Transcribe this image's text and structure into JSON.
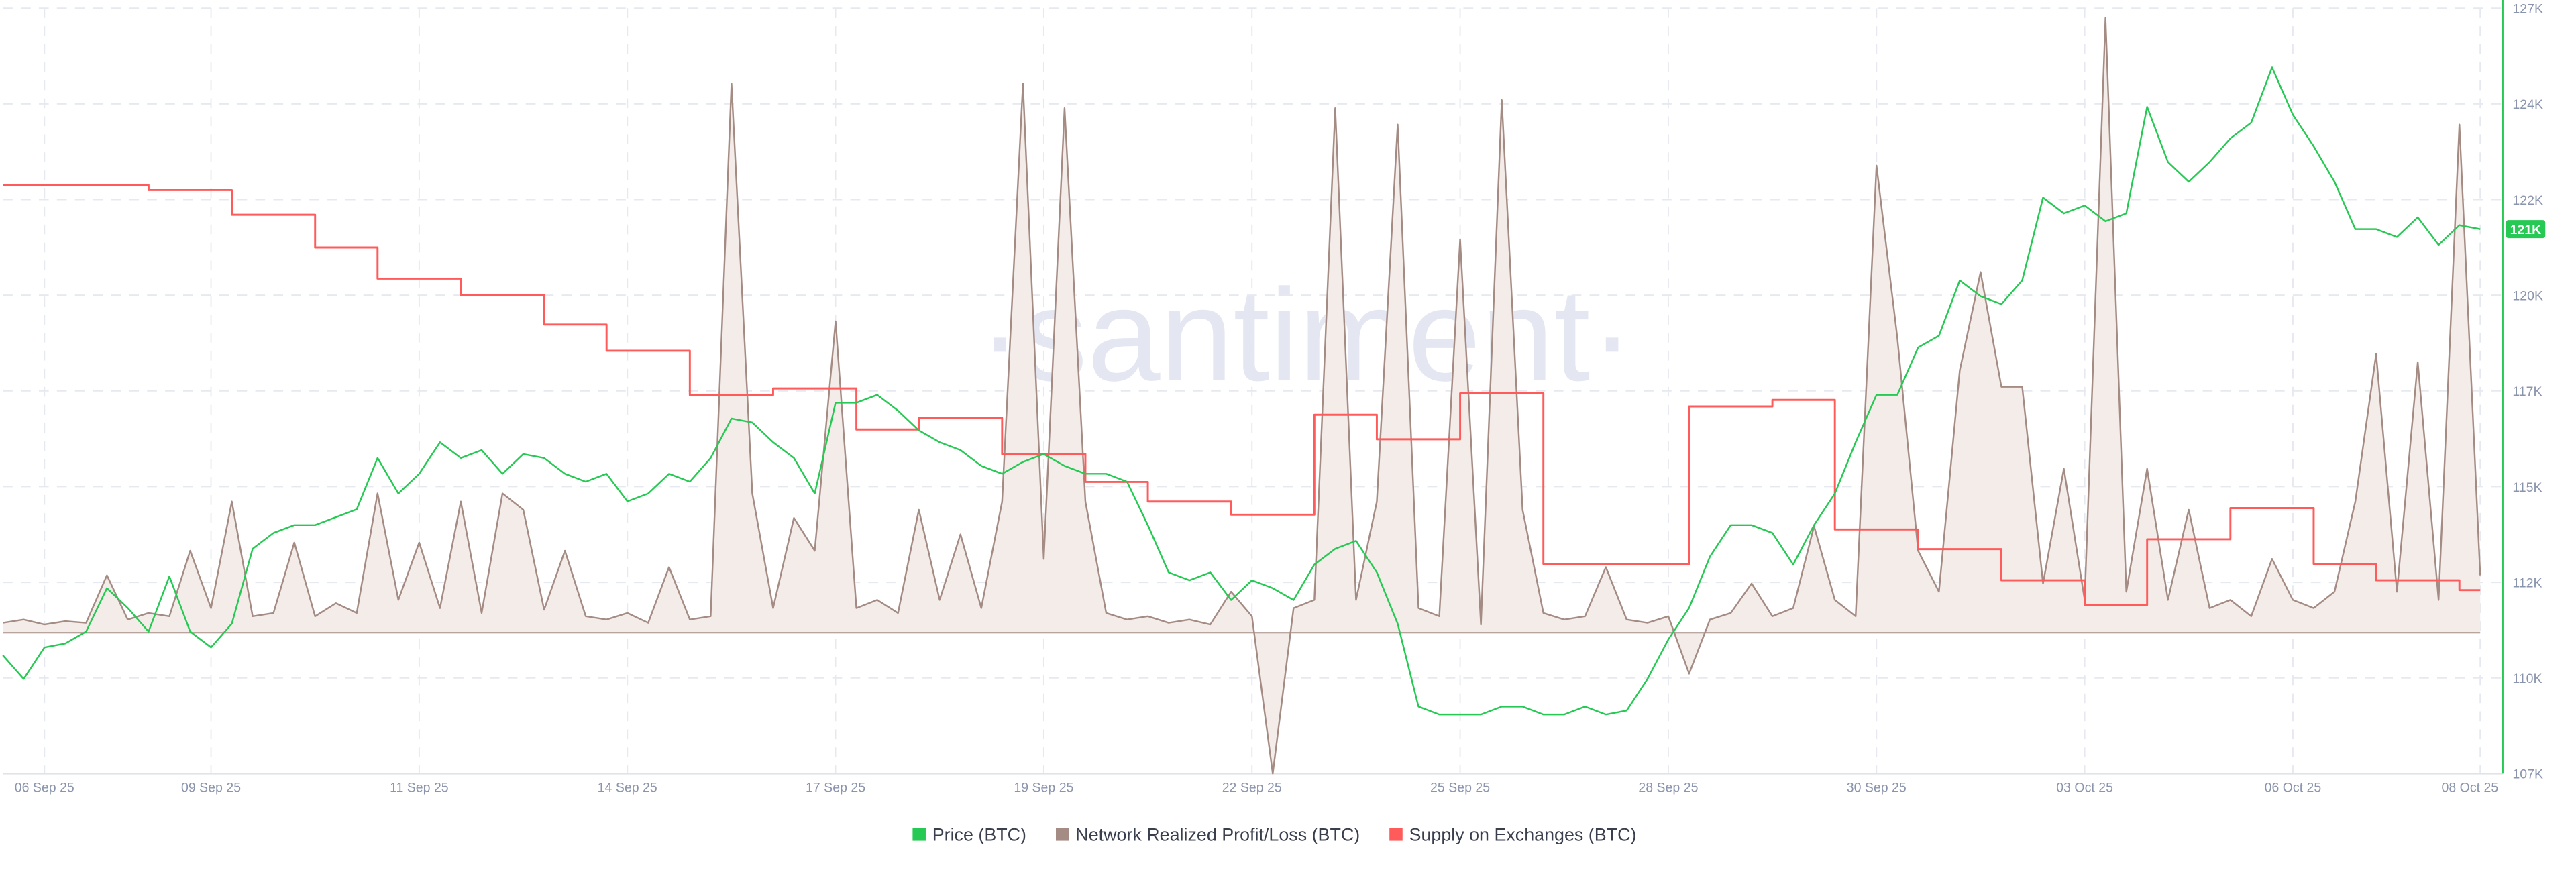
{
  "chart_data": {
    "type": "line",
    "watermark": "·santiment·",
    "categories": [
      null,
      null,
      "06 Sep 25",
      null,
      null,
      null,
      null,
      null,
      null,
      null,
      "09 Sep 25",
      null,
      null,
      null,
      null,
      null,
      null,
      null,
      null,
      null,
      "11 Sep 25",
      null,
      null,
      null,
      null,
      null,
      null,
      null,
      null,
      null,
      "14 Sep 25",
      null,
      null,
      null,
      null,
      null,
      null,
      null,
      null,
      null,
      "17 Sep 25",
      null,
      null,
      null,
      null,
      null,
      null,
      null,
      null,
      null,
      "19 Sep 25",
      null,
      null,
      null,
      null,
      null,
      null,
      null,
      null,
      null,
      "22 Sep 25",
      null,
      null,
      null,
      null,
      null,
      null,
      null,
      null,
      null,
      "25 Sep 25",
      null,
      null,
      null,
      null,
      null,
      null,
      null,
      null,
      null,
      "28 Sep 25",
      null,
      null,
      null,
      null,
      null,
      null,
      null,
      null,
      null,
      "30 Sep 25",
      null,
      null,
      null,
      null,
      null,
      null,
      null,
      null,
      null,
      "03 Oct 25",
      null,
      null,
      null,
      null,
      null,
      null,
      null,
      null,
      null,
      "06 Oct 25",
      null,
      null,
      null,
      null,
      null,
      null,
      null,
      null,
      "08 Oct 25"
    ],
    "series": [
      {
        "name": "Price (BTC)",
        "color": "#26c953",
        "axis": "y2",
        "last_label": "121K",
        "values": [
          110400,
          109800,
          110600,
          110700,
          111000,
          112100,
          111600,
          111000,
          112400,
          111000,
          110600,
          111200,
          113100,
          113500,
          113700,
          113700,
          113900,
          114100,
          115400,
          114500,
          115000,
          115800,
          115400,
          115600,
          115000,
          115500,
          115400,
          115000,
          114800,
          115000,
          114300,
          114500,
          115000,
          114800,
          115400,
          116400,
          116300,
          115800,
          115400,
          114500,
          116800,
          116800,
          117000,
          116600,
          116100,
          115800,
          115600,
          115200,
          115000,
          115300,
          115500,
          115200,
          115000,
          115000,
          114800,
          113700,
          112500,
          112300,
          112500,
          111800,
          112300,
          112100,
          111800,
          112700,
          113100,
          113300,
          112500,
          111200,
          109100,
          108900,
          108900,
          108900,
          109100,
          109100,
          108900,
          108900,
          109100,
          108900,
          109000,
          109800,
          110800,
          111600,
          112900,
          113700,
          113700,
          113500,
          112700,
          113700,
          114500,
          115800,
          117000,
          117000,
          118200,
          118500,
          119900,
          119500,
          119300,
          119900,
          122000,
          121600,
          121800,
          121400,
          121600,
          124300,
          122900,
          122400,
          122900,
          123500,
          123900,
          125300,
          124100,
          123300,
          122400,
          121200,
          121200,
          121000,
          121500,
          120800,
          121300,
          121200
        ]
      },
      {
        "name": "Network Realized Profit/Loss (BTC)",
        "color": "#a48b83",
        "area_color": "#f3ece9",
        "axis": "y",
        "values": [
          6,
          8,
          5,
          7,
          6,
          35,
          8,
          12,
          10,
          50,
          15,
          80,
          10,
          12,
          55,
          10,
          18,
          12,
          85,
          20,
          55,
          15,
          80,
          12,
          85,
          75,
          14,
          50,
          10,
          8,
          12,
          6,
          40,
          8,
          10,
          335,
          85,
          15,
          70,
          50,
          190,
          15,
          20,
          12,
          75,
          20,
          60,
          15,
          80,
          335,
          45,
          320,
          80,
          12,
          8,
          10,
          6,
          8,
          5,
          25,
          10,
          -86,
          15,
          20,
          320,
          20,
          80,
          310,
          15,
          10,
          240,
          5,
          325,
          75,
          12,
          8,
          10,
          40,
          8,
          6,
          10,
          -25,
          8,
          12,
          30,
          10,
          15,
          65,
          20,
          10,
          285,
          180,
          50,
          25,
          160,
          220,
          150,
          150,
          30,
          100,
          20,
          375,
          25,
          100,
          20,
          75,
          15,
          20,
          10,
          45,
          20,
          15,
          25,
          80,
          170,
          25,
          165,
          20,
          310,
          35
        ]
      },
      {
        "name": "Supply on Exchanges (BTC)",
        "color": "#ff5b5b",
        "axis": "y3",
        "values": [
          359,
          359,
          359,
          359,
          359,
          359,
          359,
          356,
          356,
          356,
          356,
          341,
          341,
          341,
          341,
          321,
          321,
          321,
          302,
          302,
          302,
          302,
          292,
          292,
          292,
          292,
          274,
          274,
          274,
          258,
          258,
          258,
          258,
          231,
          231,
          231,
          231,
          235,
          235,
          235,
          235,
          210,
          210,
          210,
          217,
          217,
          217,
          217,
          195,
          195,
          195,
          195,
          178,
          178,
          178,
          166,
          166,
          166,
          166,
          158,
          158,
          158,
          158,
          219,
          219,
          219,
          204,
          204,
          204,
          204,
          232,
          232,
          232,
          232,
          128,
          128,
          128,
          128,
          128,
          128,
          128,
          224,
          224,
          224,
          224,
          228,
          228,
          228,
          149,
          149,
          149,
          149,
          137,
          137,
          137,
          137,
          118,
          118,
          118,
          118,
          103,
          103,
          103,
          143,
          143,
          143,
          143,
          162,
          162,
          162,
          162,
          128,
          128,
          128,
          118,
          118,
          118,
          118,
          112,
          112
        ]
      }
    ],
    "ylim": [
      -86,
      381
    ],
    "y3lim": [
      0,
      467
    ],
    "y2lim": [
      107400,
      126800
    ],
    "y2ticks": [
      {
        "value": 107400,
        "label": "107K"
      },
      {
        "value": 109825,
        "label": "110K"
      },
      {
        "value": 112250,
        "label": "112K"
      },
      {
        "value": 114675,
        "label": "115K"
      },
      {
        "value": 117100,
        "label": "117K"
      },
      {
        "value": 119525,
        "label": "120K"
      },
      {
        "value": 121950,
        "label": "122K"
      },
      {
        "value": 124375,
        "label": "124K"
      },
      {
        "value": 126800,
        "label": "127K"
      }
    ],
    "grid": true,
    "legend": "bottom"
  }
}
